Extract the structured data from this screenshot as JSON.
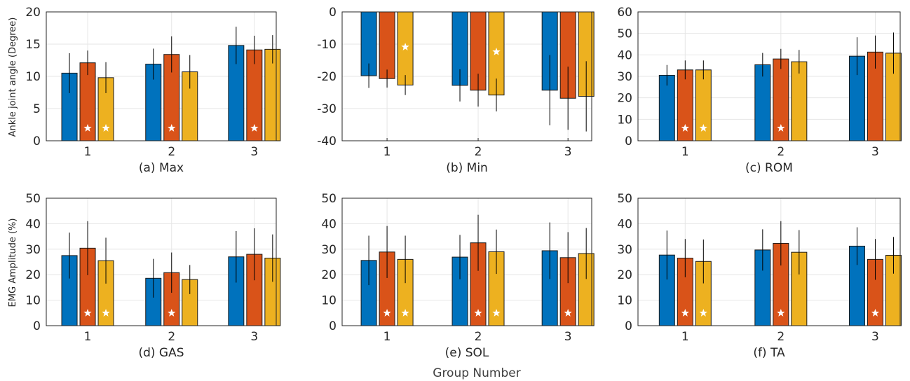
{
  "figure": {
    "x_label": "Group Number",
    "y_labels": [
      "Ankle joint angle (Degree)",
      "EMG Amplitude (%)"
    ]
  },
  "colors": [
    "#0072BD",
    "#D95319",
    "#EDB120"
  ],
  "chart_data": [
    {
      "type": "bar",
      "subtitle": "(a) Max",
      "categories": [
        "1",
        "2",
        "3"
      ],
      "ylim": [
        0,
        20
      ],
      "yticks": [
        0,
        5,
        10,
        15,
        20
      ],
      "series": [
        {
          "values": [
            10.5,
            11.9,
            14.8
          ],
          "err": [
            3.1,
            2.4,
            2.9
          ],
          "stars": [
            false,
            false,
            false
          ]
        },
        {
          "values": [
            12.1,
            13.4,
            14.1
          ],
          "err": [
            1.9,
            2.8,
            2.2
          ],
          "stars": [
            true,
            true,
            true
          ]
        },
        {
          "values": [
            9.8,
            10.7,
            14.2
          ],
          "err": [
            2.4,
            2.6,
            2.2
          ],
          "stars": [
            true,
            false,
            false
          ]
        }
      ]
    },
    {
      "type": "bar",
      "subtitle": "(b) Min",
      "categories": [
        "1",
        "2",
        "3"
      ],
      "ylim": [
        -40,
        0
      ],
      "yticks": [
        -40,
        -30,
        -20,
        -10,
        0
      ],
      "series": [
        {
          "values": [
            -19.8,
            -22.8,
            -24.3
          ],
          "err": [
            3.8,
            5.0,
            10.9
          ],
          "stars": [
            false,
            false,
            false
          ]
        },
        {
          "values": [
            -20.7,
            -24.3,
            -26.8
          ],
          "err": [
            2.8,
            5.1,
            9.8
          ],
          "stars": [
            false,
            false,
            false
          ]
        },
        {
          "values": [
            -22.7,
            -25.8,
            -26.2
          ],
          "err": [
            3.1,
            5.1,
            10.9
          ],
          "stars": [
            true,
            true,
            false
          ]
        }
      ]
    },
    {
      "type": "bar",
      "subtitle": "(c) ROM",
      "categories": [
        "1",
        "2",
        "3"
      ],
      "ylim": [
        0,
        60
      ],
      "yticks": [
        0,
        10,
        20,
        30,
        40,
        50,
        60
      ],
      "series": [
        {
          "values": [
            30.5,
            35.4,
            39.4
          ],
          "err": [
            4.8,
            5.5,
            8.8
          ],
          "stars": [
            false,
            false,
            false
          ]
        },
        {
          "values": [
            33.0,
            38.1,
            41.3
          ],
          "err": [
            4.4,
            4.7,
            7.7
          ],
          "stars": [
            true,
            true,
            false
          ]
        },
        {
          "values": [
            33.0,
            36.8,
            40.8
          ],
          "err": [
            4.4,
            5.5,
            9.6
          ],
          "stars": [
            true,
            false,
            false
          ]
        }
      ]
    },
    {
      "type": "bar",
      "subtitle": "(d) GAS",
      "categories": [
        "1",
        "2",
        "3"
      ],
      "ylim": [
        0,
        50
      ],
      "yticks": [
        0,
        10,
        20,
        30,
        40,
        50
      ],
      "series": [
        {
          "values": [
            27.5,
            18.6,
            27.0
          ],
          "err": [
            9.0,
            7.6,
            10.1
          ],
          "stars": [
            false,
            false,
            false
          ]
        },
        {
          "values": [
            30.4,
            20.8,
            28.0
          ],
          "err": [
            10.6,
            7.9,
            10.2
          ],
          "stars": [
            true,
            true,
            false
          ]
        },
        {
          "values": [
            25.5,
            18.1,
            26.5
          ],
          "err": [
            9.0,
            5.7,
            9.3
          ],
          "stars": [
            true,
            false,
            false
          ]
        }
      ]
    },
    {
      "type": "bar",
      "subtitle": "(e) SOL",
      "categories": [
        "1",
        "2",
        "3"
      ],
      "ylim": [
        0,
        50
      ],
      "yticks": [
        0,
        10,
        20,
        30,
        40,
        50
      ],
      "series": [
        {
          "values": [
            25.6,
            26.9,
            29.4
          ],
          "err": [
            9.7,
            8.7,
            11.1
          ],
          "stars": [
            false,
            false,
            false
          ]
        },
        {
          "values": [
            28.9,
            32.5,
            26.7
          ],
          "err": [
            10.2,
            11.0,
            10.0
          ],
          "stars": [
            true,
            true,
            true
          ]
        },
        {
          "values": [
            26.0,
            29.0,
            28.3
          ],
          "err": [
            9.3,
            8.7,
            10.0
          ],
          "stars": [
            true,
            true,
            false
          ]
        }
      ]
    },
    {
      "type": "bar",
      "subtitle": "(f) TA",
      "categories": [
        "1",
        "2",
        "3"
      ],
      "ylim": [
        0,
        50
      ],
      "yticks": [
        0,
        10,
        20,
        30,
        40,
        50
      ],
      "series": [
        {
          "values": [
            27.7,
            29.7,
            31.2
          ],
          "err": [
            9.6,
            8.1,
            7.4
          ],
          "stars": [
            false,
            false,
            false
          ]
        },
        {
          "values": [
            26.5,
            32.3,
            26.0
          ],
          "err": [
            7.5,
            8.7,
            8.0
          ],
          "stars": [
            true,
            true,
            true
          ]
        },
        {
          "values": [
            25.2,
            28.8,
            27.6
          ],
          "err": [
            8.6,
            8.7,
            7.2
          ],
          "stars": [
            true,
            false,
            false
          ]
        }
      ]
    }
  ]
}
